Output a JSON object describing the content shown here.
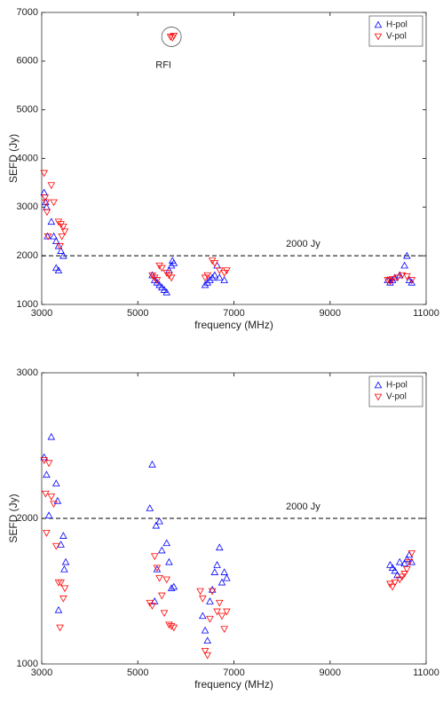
{
  "chart_data": [
    {
      "type": "scatter",
      "xlabel": "frequency (MHz)",
      "ylabel": "SEFD (Jy)",
      "xlim": [
        3000,
        11000
      ],
      "xticks": [
        3000,
        5000,
        7000,
        9000,
        11000
      ],
      "ylim": [
        1000,
        7000
      ],
      "yticks": [
        1000,
        2000,
        3000,
        4000,
        5000,
        6000,
        7000
      ],
      "legend": "northeast",
      "hline": {
        "value": 2000,
        "label": "2000 Jy"
      },
      "annotations": [
        {
          "text": "RFI",
          "x": 5700,
          "y": 6500
        }
      ],
      "series": [
        {
          "name": "H-pol",
          "color": "#0000ff",
          "marker": "up",
          "x": [
            3050,
            3080,
            3100,
            3120,
            3200,
            3250,
            3300,
            3350,
            3400,
            3450,
            3300,
            3350,
            5300,
            5350,
            5400,
            5450,
            5500,
            5550,
            5600,
            5650,
            5700,
            5750,
            5720,
            6400,
            6450,
            6500,
            6550,
            6600,
            6650,
            6700,
            6800,
            10200,
            10250,
            10300,
            10350,
            10450,
            10550,
            10600,
            10650,
            10700
          ],
          "y": [
            3300,
            3100,
            3000,
            2400,
            2700,
            2400,
            2300,
            2200,
            2100,
            2000,
            1750,
            1700,
            1600,
            1500,
            1450,
            1400,
            1350,
            1300,
            1250,
            1700,
            1800,
            1850,
            1900,
            1400,
            1450,
            1500,
            1550,
            1600,
            1800,
            1550,
            1500,
            1500,
            1450,
            1500,
            1550,
            1600,
            1800,
            2000,
            1500,
            1450
          ]
        },
        {
          "name": "V-pol",
          "color": "#ff0000",
          "marker": "down",
          "x": [
            3050,
            3070,
            3090,
            3110,
            3130,
            3200,
            3250,
            3350,
            3400,
            3450,
            3480,
            3420,
            3380,
            5680,
            5720,
            5750,
            5300,
            5350,
            5400,
            5450,
            5500,
            5600,
            5650,
            5700,
            6400,
            6450,
            6550,
            6600,
            6700,
            6800,
            6850,
            10200,
            10250,
            10300,
            10400,
            10500,
            10600,
            10700
          ],
          "y": [
            3700,
            3200,
            3100,
            2900,
            2400,
            3450,
            3100,
            2700,
            2650,
            2600,
            2500,
            2400,
            2200,
            6500,
            6480,
            6520,
            1600,
            1550,
            1500,
            1800,
            1750,
            1650,
            1600,
            1550,
            1550,
            1600,
            1900,
            1850,
            1700,
            1650,
            1700,
            1500,
            1480,
            1520,
            1550,
            1600,
            1580,
            1500
          ]
        }
      ]
    },
    {
      "type": "scatter",
      "xlabel": "frequency (MHz)",
      "ylabel": "SEFD (Jy)",
      "xlim": [
        3000,
        11000
      ],
      "xticks": [
        3000,
        5000,
        7000,
        9000,
        11000
      ],
      "ylim": [
        1000,
        3000
      ],
      "yticks": [
        1000,
        2000,
        3000
      ],
      "legend": "northeast",
      "hline": {
        "value": 2000,
        "label": "2000 Jy"
      },
      "series": [
        {
          "name": "H-pol",
          "color": "#0000ff",
          "marker": "up",
          "x": [
            3050,
            3100,
            3150,
            3200,
            3300,
            3330,
            3400,
            3450,
            3470,
            3500,
            3350,
            5250,
            5300,
            5350,
            5380,
            5400,
            5450,
            5500,
            5600,
            5650,
            5700,
            5750,
            6350,
            6400,
            6450,
            6500,
            6550,
            6600,
            6650,
            6700,
            6750,
            6800,
            6850,
            10250,
            10300,
            10350,
            10400,
            10450,
            10550,
            10600,
            10650,
            10700
          ],
          "y": [
            2420,
            2300,
            2020,
            2560,
            2240,
            2120,
            1820,
            1880,
            1650,
            1700,
            1370,
            2070,
            2370,
            1430,
            1950,
            1650,
            1980,
            1780,
            1830,
            1700,
            1520,
            1530,
            1330,
            1230,
            1160,
            1430,
            1510,
            1630,
            1680,
            1800,
            1560,
            1630,
            1590,
            1680,
            1660,
            1640,
            1610,
            1700,
            1690,
            1720,
            1750,
            1700
          ]
        },
        {
          "name": "V-pol",
          "color": "#ff0000",
          "marker": "down",
          "x": [
            3050,
            3080,
            3100,
            3150,
            3200,
            3250,
            3300,
            3350,
            3380,
            3400,
            3450,
            3480,
            5250,
            5300,
            5350,
            5400,
            5450,
            5500,
            5550,
            5600,
            5650,
            5700,
            5750,
            6300,
            6350,
            6400,
            6450,
            6500,
            6550,
            6650,
            6700,
            6750,
            6800,
            6850,
            10250,
            10300,
            10350,
            10450,
            10500,
            10550,
            10600,
            10650,
            10700
          ],
          "y": [
            2400,
            2170,
            1900,
            2380,
            2150,
            2100,
            1810,
            1560,
            1250,
            1560,
            1450,
            1520,
            1420,
            1400,
            1740,
            1660,
            1590,
            1470,
            1350,
            1580,
            1270,
            1260,
            1250,
            1500,
            1450,
            1090,
            1060,
            1310,
            1500,
            1360,
            1420,
            1330,
            1240,
            1360,
            1550,
            1530,
            1560,
            1580,
            1600,
            1620,
            1650,
            1700,
            1760
          ]
        }
      ]
    }
  ]
}
